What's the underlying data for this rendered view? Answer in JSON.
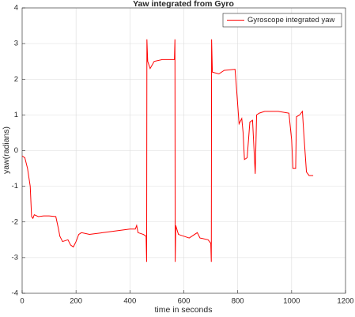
{
  "chart_data": {
    "type": "line",
    "title": "Yaw integrated from Gyro",
    "x_label": "time in seconds",
    "y_label": "yaw(radians)",
    "legend": "northeast",
    "grid": true,
    "xlim": [
      0,
      1200
    ],
    "xticks": [
      0,
      200,
      400,
      600,
      800,
      1000,
      1200
    ],
    "ylim": [
      -4,
      4
    ],
    "yticks": [
      -4,
      -3,
      -2,
      -1,
      0,
      1,
      2,
      3,
      4
    ],
    "x": [
      0,
      10,
      20,
      30,
      35,
      40,
      45,
      60,
      80,
      100,
      125,
      135,
      140,
      150,
      170,
      180,
      190,
      200,
      210,
      220,
      250,
      300,
      350,
      400,
      420,
      425,
      430,
      450,
      460,
      462,
      463,
      466,
      475,
      490,
      520,
      550,
      565,
      567,
      568,
      570,
      580,
      620,
      650,
      660,
      690,
      700,
      702,
      703,
      706,
      730,
      750,
      790,
      795,
      805,
      815,
      820,
      825,
      835,
      845,
      855,
      860,
      865,
      870,
      880,
      900,
      950,
      990,
      1000,
      1005,
      1015,
      1018,
      1030,
      1040,
      1045,
      1055,
      1065,
      1080
    ],
    "series": [
      {
        "name": "Gyroscope integrated yaw",
        "color": "#ff0000",
        "values": [
          -0.15,
          -0.2,
          -0.5,
          -1.0,
          -1.85,
          -1.9,
          -1.8,
          -1.85,
          -1.83,
          -1.83,
          -1.85,
          -2.2,
          -2.4,
          -2.55,
          -2.5,
          -2.65,
          -2.7,
          -2.55,
          -2.35,
          -2.3,
          -2.35,
          -2.3,
          -2.25,
          -2.2,
          -2.2,
          -2.1,
          -2.3,
          -2.35,
          -2.4,
          -3.12,
          3.12,
          2.5,
          2.3,
          2.5,
          2.55,
          2.55,
          2.55,
          3.12,
          -3.12,
          -2.1,
          -2.35,
          -2.45,
          -2.3,
          -2.45,
          -2.5,
          -2.6,
          -3.12,
          3.12,
          2.2,
          2.15,
          2.25,
          2.28,
          1.8,
          0.75,
          0.9,
          0.5,
          -0.25,
          -0.2,
          0.8,
          0.85,
          0.1,
          -0.65,
          1.0,
          1.05,
          1.1,
          1.1,
          1.05,
          0.3,
          -0.5,
          -0.5,
          0.95,
          1.0,
          1.1,
          0.5,
          -0.6,
          -0.7,
          -0.7
        ]
      }
    ]
  }
}
